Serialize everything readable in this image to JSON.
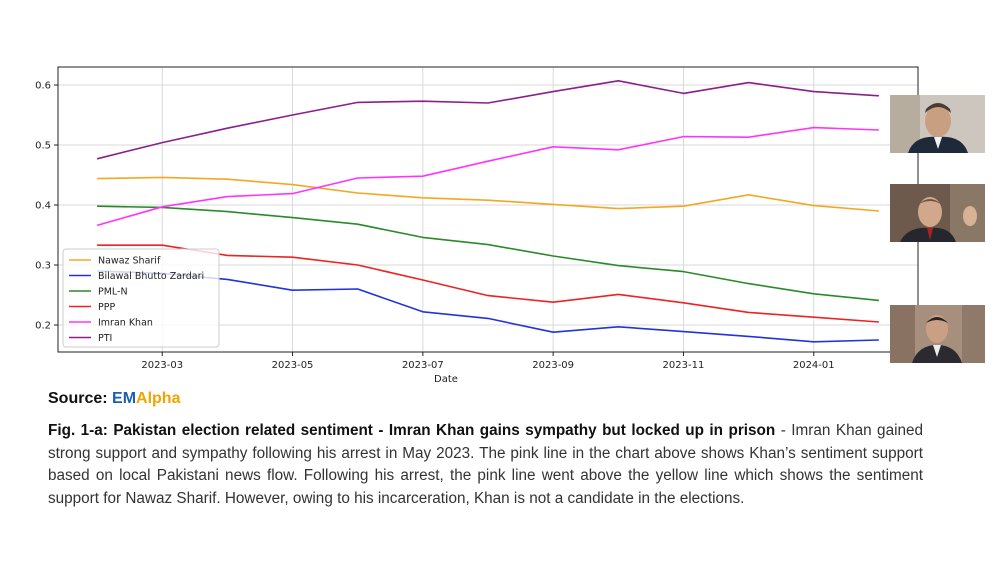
{
  "chart_data": {
    "type": "line",
    "xlabel": "Date",
    "ylabel": "",
    "x": [
      "2023-02",
      "2023-03",
      "2023-04",
      "2023-05",
      "2023-06",
      "2023-07",
      "2023-08",
      "2023-09",
      "2023-10",
      "2023-11",
      "2023-12",
      "2024-01",
      "2024-02"
    ],
    "x_ticks": [
      "2023-03",
      "2023-05",
      "2023-07",
      "2023-09",
      "2023-11",
      "2024-01"
    ],
    "y_ticks": [
      0.2,
      0.3,
      0.4,
      0.5,
      0.6
    ],
    "ylim": [
      0.155,
      0.63
    ],
    "grid": true,
    "legend_position": "lower-left",
    "series": [
      {
        "name": "Nawaz Sharif",
        "color": "#f5a623",
        "values": [
          0.444,
          0.446,
          0.443,
          0.434,
          0.42,
          0.412,
          0.408,
          0.401,
          0.394,
          0.398,
          0.417,
          0.399,
          0.39
        ]
      },
      {
        "name": "Bilawal Bhutto Zardari",
        "color": "#2233dd",
        "values": [
          0.29,
          0.286,
          0.276,
          0.258,
          0.26,
          0.222,
          0.211,
          0.188,
          0.197,
          0.189,
          0.181,
          0.172,
          0.175
        ]
      },
      {
        "name": "PML-N",
        "color": "#2a8a2a",
        "values": [
          0.398,
          0.396,
          0.389,
          0.379,
          0.368,
          0.346,
          0.334,
          0.315,
          0.299,
          0.289,
          0.269,
          0.252,
          0.241
        ]
      },
      {
        "name": "PPP",
        "color": "#ee2222",
        "values": [
          0.333,
          0.333,
          0.316,
          0.313,
          0.3,
          0.275,
          0.249,
          0.238,
          0.251,
          0.237,
          0.221,
          0.213,
          0.205
        ]
      },
      {
        "name": "Imran Khan",
        "color": "#ff33ff",
        "values": [
          0.366,
          0.397,
          0.414,
          0.419,
          0.445,
          0.448,
          0.473,
          0.497,
          0.492,
          0.514,
          0.513,
          0.529,
          0.525
        ]
      },
      {
        "name": "PTI",
        "color": "#8a1f8a",
        "values": [
          0.477,
          0.504,
          0.528,
          0.55,
          0.571,
          0.573,
          0.57,
          0.589,
          0.607,
          0.586,
          0.604,
          0.589,
          0.582
        ]
      }
    ]
  },
  "photos": [
    {
      "name": "imran-khan-photo",
      "bg": "#c8c0b8"
    },
    {
      "name": "nawaz-sharif-photo",
      "bg": "#7a6a5e"
    },
    {
      "name": "bilawal-bhutto-photo",
      "bg": "#b09a88"
    }
  ],
  "source": {
    "label": "Source",
    "sep": ": ",
    "brand_em": "EM",
    "brand_alpha": "Alpha"
  },
  "caption": {
    "bold": "Fig. 1-a: Pakistan election related sentiment - Imran Khan gains sympathy but  locked up in prison",
    "text": " - Imran Khan gained strong support and sympathy following his arrest in May 2023. The pink line in the chart above shows Khan’s sentiment support based on local Pakistani news flow. Following his arrest, the pink line went above the yellow line which shows the sentiment support for Nawaz Sharif. However, owing to his incarceration, Khan is not a candidate in the elections."
  }
}
